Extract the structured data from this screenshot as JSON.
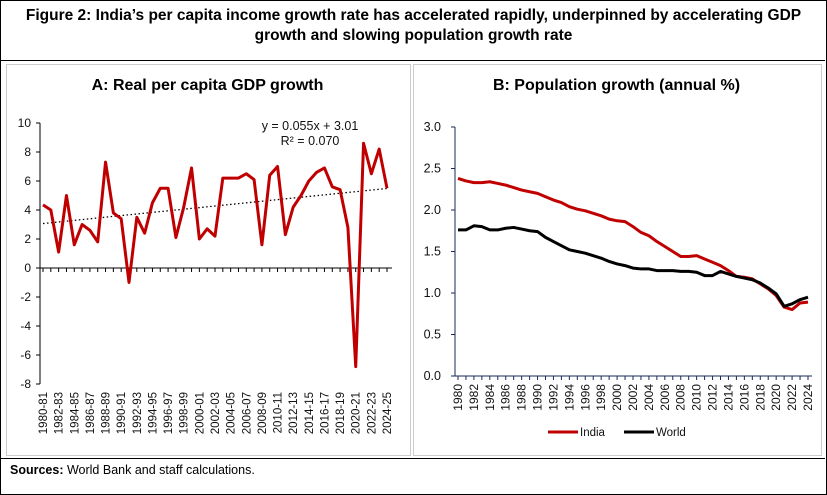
{
  "figure_title": "Figure 2: India’s per capita income growth rate has accelerated rapidly, underpinned by accelerating GDP growth and slowing population growth rate",
  "sources": {
    "label": "Sources:",
    "text": " World Bank and staff calculations."
  },
  "colors": {
    "india": "#C00000",
    "world": "#000000"
  },
  "chart_data": [
    {
      "type": "line",
      "title": "A: Real per capita GDP growth",
      "ylim": [
        -8,
        10
      ],
      "yticks": [
        -8,
        -6,
        -4,
        -2,
        0,
        2,
        4,
        6,
        8,
        10
      ],
      "categories": [
        "1980-81",
        "1981-82",
        "1982-83",
        "1983-84",
        "1984-85",
        "1985-86",
        "1986-87",
        "1987-88",
        "1988-89",
        "1989-90",
        "1990-91",
        "1991-92",
        "1992-93",
        "1993-94",
        "1994-95",
        "1995-96",
        "1996-97",
        "1997-98",
        "1998-99",
        "1999-00",
        "2000-01",
        "2001-02",
        "2002-03",
        "2003-04",
        "2004-05",
        "2005-06",
        "2006-07",
        "2007-08",
        "2008-09",
        "2009-10",
        "2010-11",
        "2011-12",
        "2012-13",
        "2013-14",
        "2014-15",
        "2015-16",
        "2016-17",
        "2017-18",
        "2018-19",
        "2019-20",
        "2020-21",
        "2021-22",
        "2022-23",
        "2023-24",
        "2024-25"
      ],
      "tick_labels": [
        "1980-81",
        "1982-83",
        "1984-85",
        "1986-87",
        "1988-89",
        "1990-91",
        "1992-93",
        "1994-95",
        "1996-97",
        "1998-99",
        "2000-01",
        "2002-03",
        "2004-05",
        "2006-07",
        "2008-09",
        "2010-11",
        "2012-13",
        "2014-15",
        "2016-17",
        "2018-19",
        "2020-21",
        "2022-23",
        "2024-25"
      ],
      "values": [
        4.35,
        4.0,
        1.1,
        5.0,
        1.6,
        3.0,
        2.6,
        1.8,
        7.3,
        3.8,
        3.4,
        -1.0,
        3.5,
        2.4,
        4.5,
        5.5,
        5.5,
        2.1,
        4.2,
        6.9,
        2.0,
        2.7,
        2.2,
        6.2,
        6.2,
        6.2,
        6.5,
        6.1,
        1.6,
        6.4,
        7.0,
        2.3,
        4.2,
        5.0,
        6.0,
        6.6,
        6.9,
        5.6,
        5.4,
        2.8,
        -6.8,
        8.6,
        6.5,
        8.2,
        5.5
      ],
      "trendline": {
        "slope": 0.055,
        "intercept": 3.01,
        "equation": "y = 0.055x + 3.01",
        "r2": "R² = 0.070"
      }
    },
    {
      "type": "line",
      "title": "B: Population growth (annual %)",
      "ylim": [
        0,
        3
      ],
      "yticks": [
        "0.0",
        "0.5",
        "1.0",
        "1.5",
        "2.0",
        "2.5",
        "3.0"
      ],
      "x": [
        1980,
        1981,
        1982,
        1983,
        1984,
        1985,
        1986,
        1987,
        1988,
        1989,
        1990,
        1991,
        1992,
        1993,
        1994,
        1995,
        1996,
        1997,
        1998,
        1999,
        2000,
        2001,
        2002,
        2003,
        2004,
        2005,
        2006,
        2007,
        2008,
        2009,
        2010,
        2011,
        2012,
        2013,
        2014,
        2015,
        2016,
        2017,
        2018,
        2019,
        2020,
        2021,
        2022,
        2023,
        2024
      ],
      "legend": "bottom",
      "series": [
        {
          "name": "India",
          "values": [
            2.38,
            2.35,
            2.33,
            2.33,
            2.34,
            2.32,
            2.3,
            2.27,
            2.24,
            2.22,
            2.2,
            2.16,
            2.12,
            2.09,
            2.04,
            2.01,
            1.99,
            1.96,
            1.93,
            1.89,
            1.87,
            1.86,
            1.8,
            1.73,
            1.69,
            1.62,
            1.56,
            1.5,
            1.44,
            1.44,
            1.45,
            1.41,
            1.37,
            1.33,
            1.27,
            1.2,
            1.19,
            1.17,
            1.11,
            1.05,
            0.97,
            0.83,
            0.8,
            0.88,
            0.89
          ]
        },
        {
          "name": "World",
          "values": [
            1.76,
            1.76,
            1.81,
            1.8,
            1.76,
            1.76,
            1.78,
            1.79,
            1.77,
            1.75,
            1.74,
            1.67,
            1.62,
            1.57,
            1.52,
            1.5,
            1.48,
            1.45,
            1.42,
            1.38,
            1.35,
            1.33,
            1.3,
            1.29,
            1.29,
            1.27,
            1.27,
            1.27,
            1.26,
            1.26,
            1.25,
            1.21,
            1.21,
            1.26,
            1.23,
            1.2,
            1.18,
            1.16,
            1.12,
            1.06,
            0.99,
            0.84,
            0.87,
            0.92,
            0.95
          ]
        }
      ]
    }
  ]
}
